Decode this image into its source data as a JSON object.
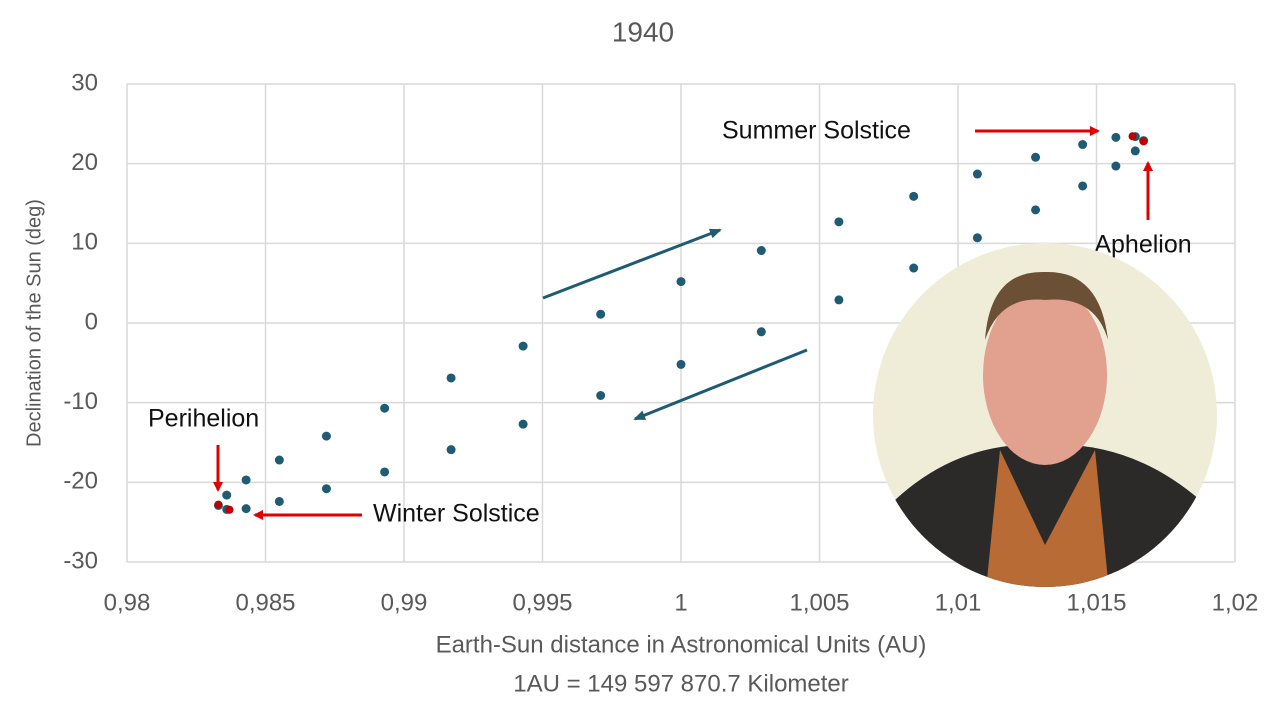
{
  "chart_data": {
    "type": "scatter",
    "title": "1940",
    "x_label": "Earth-Sun distance in Astronomical Units (AU)",
    "x_label_note": "1AU = 149 597 870.7 Kilometer",
    "y_label": "Declination of the Sun (deg)",
    "xlim": [
      0.98,
      1.02
    ],
    "xticks": [
      {
        "value": 0.98,
        "label": "0,98"
      },
      {
        "value": 0.985,
        "label": "0,985"
      },
      {
        "value": 0.99,
        "label": "0,99"
      },
      {
        "value": 0.995,
        "label": "0,995"
      },
      1,
      {
        "value": 1.005,
        "label": "1,005"
      },
      {
        "value": 1.01,
        "label": "1,01"
      },
      {
        "value": 1.015,
        "label": "1,015"
      },
      {
        "value": 1.02,
        "label": "1,02"
      }
    ],
    "ylim": [
      -30,
      30
    ],
    "yticks": [
      -30,
      -20,
      -10,
      0,
      10,
      20,
      30
    ],
    "grid": true,
    "color": "#1f5b73",
    "x": [
      0.9833,
      0.9836,
      0.9843,
      0.9855,
      0.9872,
      0.9893,
      0.9917,
      0.9943,
      0.9971,
      1.0,
      1.0029,
      1.0057,
      1.0084,
      1.0107,
      1.0128,
      1.0145,
      1.0157,
      1.0164,
      1.0167,
      1.0164,
      1.0157,
      1.0145,
      1.0128,
      1.0107,
      1.0084,
      1.0057,
      1.0029,
      1.0,
      0.9971,
      0.9943,
      0.9917,
      0.9893,
      0.9872,
      0.9855,
      0.9843,
      0.9836
    ],
    "y": [
      -22.9,
      -21.6,
      -19.7,
      -17.2,
      -14.2,
      -10.7,
      -6.9,
      -2.9,
      1.1,
      5.2,
      9.1,
      12.7,
      15.9,
      18.7,
      20.8,
      22.4,
      23.3,
      23.4,
      22.9,
      21.6,
      19.7,
      17.2,
      14.2,
      10.7,
      6.9,
      2.9,
      -1.1,
      -5.2,
      -9.1,
      -12.7,
      -15.9,
      -18.7,
      -20.8,
      -22.4,
      -23.3,
      -23.4
    ],
    "highlights": {
      "color": "#c00000",
      "labels": [
        "Perihelion",
        "Winter Solstice",
        "Summer Solstice",
        "Aphelion"
      ],
      "x": [
        0.9833,
        0.9837,
        1.0163,
        1.0167
      ],
      "y": [
        -22.8,
        -23.44,
        23.44,
        22.8
      ]
    }
  }
}
